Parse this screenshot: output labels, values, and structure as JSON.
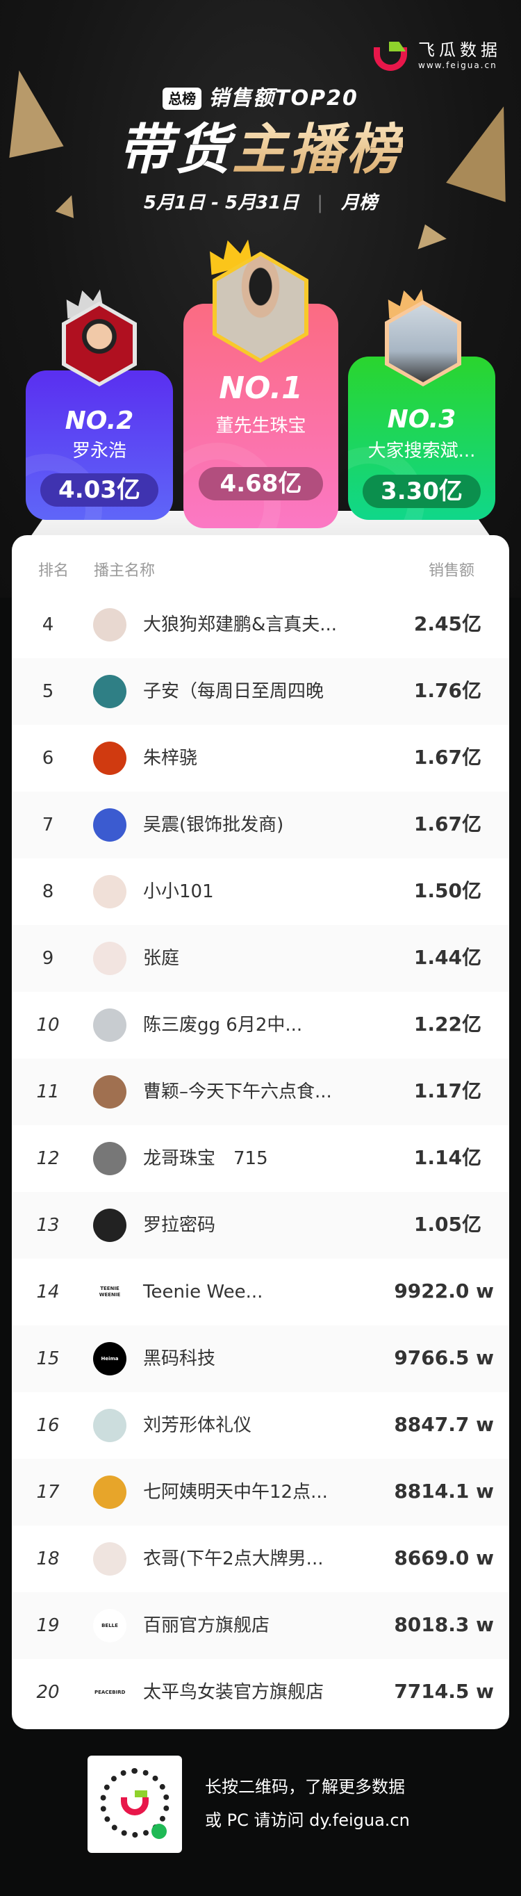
{
  "brand": {
    "name": "飞瓜数据",
    "url": "www.feigua.cn",
    "colors": {
      "red": "#e8174a",
      "green": "#8fd22c"
    }
  },
  "header": {
    "badge": "总榜",
    "subtitle": "销售额TOP20",
    "title_white": "带货",
    "title_gold": "主播榜",
    "date_range": "5月1日  -  5月31日",
    "separator": "|",
    "period": "月榜"
  },
  "podium": [
    {
      "rank_label": "NO.2",
      "name": "罗永浩",
      "sales": "4.03亿",
      "color": "#5b3cf0"
    },
    {
      "rank_label": "NO.1",
      "name": "董先生珠宝",
      "sales": "4.68亿",
      "color": "#fb6f8f"
    },
    {
      "rank_label": "NO.3",
      "name": "大家搜索斌...",
      "sales": "3.30亿",
      "color": "#22cc55"
    }
  ],
  "list": {
    "headers": {
      "rank": "排名",
      "name": "播主名称",
      "sales": "销售额"
    },
    "rows": [
      {
        "rank": "4",
        "name": "大狼狗郑建鹏&言真夫...",
        "sales": "2.45亿"
      },
      {
        "rank": "5",
        "name": "子安（每周日至周四晚",
        "sales": "1.76亿"
      },
      {
        "rank": "6",
        "name": "朱梓骁",
        "sales": "1.67亿"
      },
      {
        "rank": "7",
        "name": "吴震(银饰批发商)",
        "sales": "1.67亿"
      },
      {
        "rank": "8",
        "name": "小小101",
        "sales": "1.50亿"
      },
      {
        "rank": "9",
        "name": "张庭",
        "sales": "1.44亿"
      },
      {
        "rank": "10",
        "name": "陈三废gg 6月2中...",
        "sales": "1.22亿"
      },
      {
        "rank": "11",
        "name": "曹颖–今天下午六点食...",
        "sales": "1.17亿"
      },
      {
        "rank": "12",
        "name": "龙哥珠宝　715",
        "sales": "1.14亿"
      },
      {
        "rank": "13",
        "name": "罗拉密码",
        "sales": "1.05亿"
      },
      {
        "rank": "14",
        "name": "Teenie Wee...",
        "sales": "9922.0 w",
        "avatar_text": "TEENIE WEENIE"
      },
      {
        "rank": "15",
        "name": "黑码科技",
        "sales": "9766.5 w",
        "avatar_text": "Heima"
      },
      {
        "rank": "16",
        "name": "刘芳形体礼仪",
        "sales": "8847.7 w"
      },
      {
        "rank": "17",
        "name": "七阿姨明天中午12点...",
        "sales": "8814.1 w"
      },
      {
        "rank": "18",
        "name": "衣哥(下午2点大牌男...",
        "sales": "8669.0 w"
      },
      {
        "rank": "19",
        "name": "百丽官方旗舰店",
        "sales": "8018.3 w",
        "avatar_text": "BELLE"
      },
      {
        "rank": "20",
        "name": "太平鸟女装官方旗舰店",
        "sales": "7714.5 w",
        "avatar_text": "PEACEBIRD"
      }
    ]
  },
  "footer": {
    "line1": "长按二维码，了解更多数据",
    "line2": "或 PC 请访问 dy.feigua.cn"
  }
}
